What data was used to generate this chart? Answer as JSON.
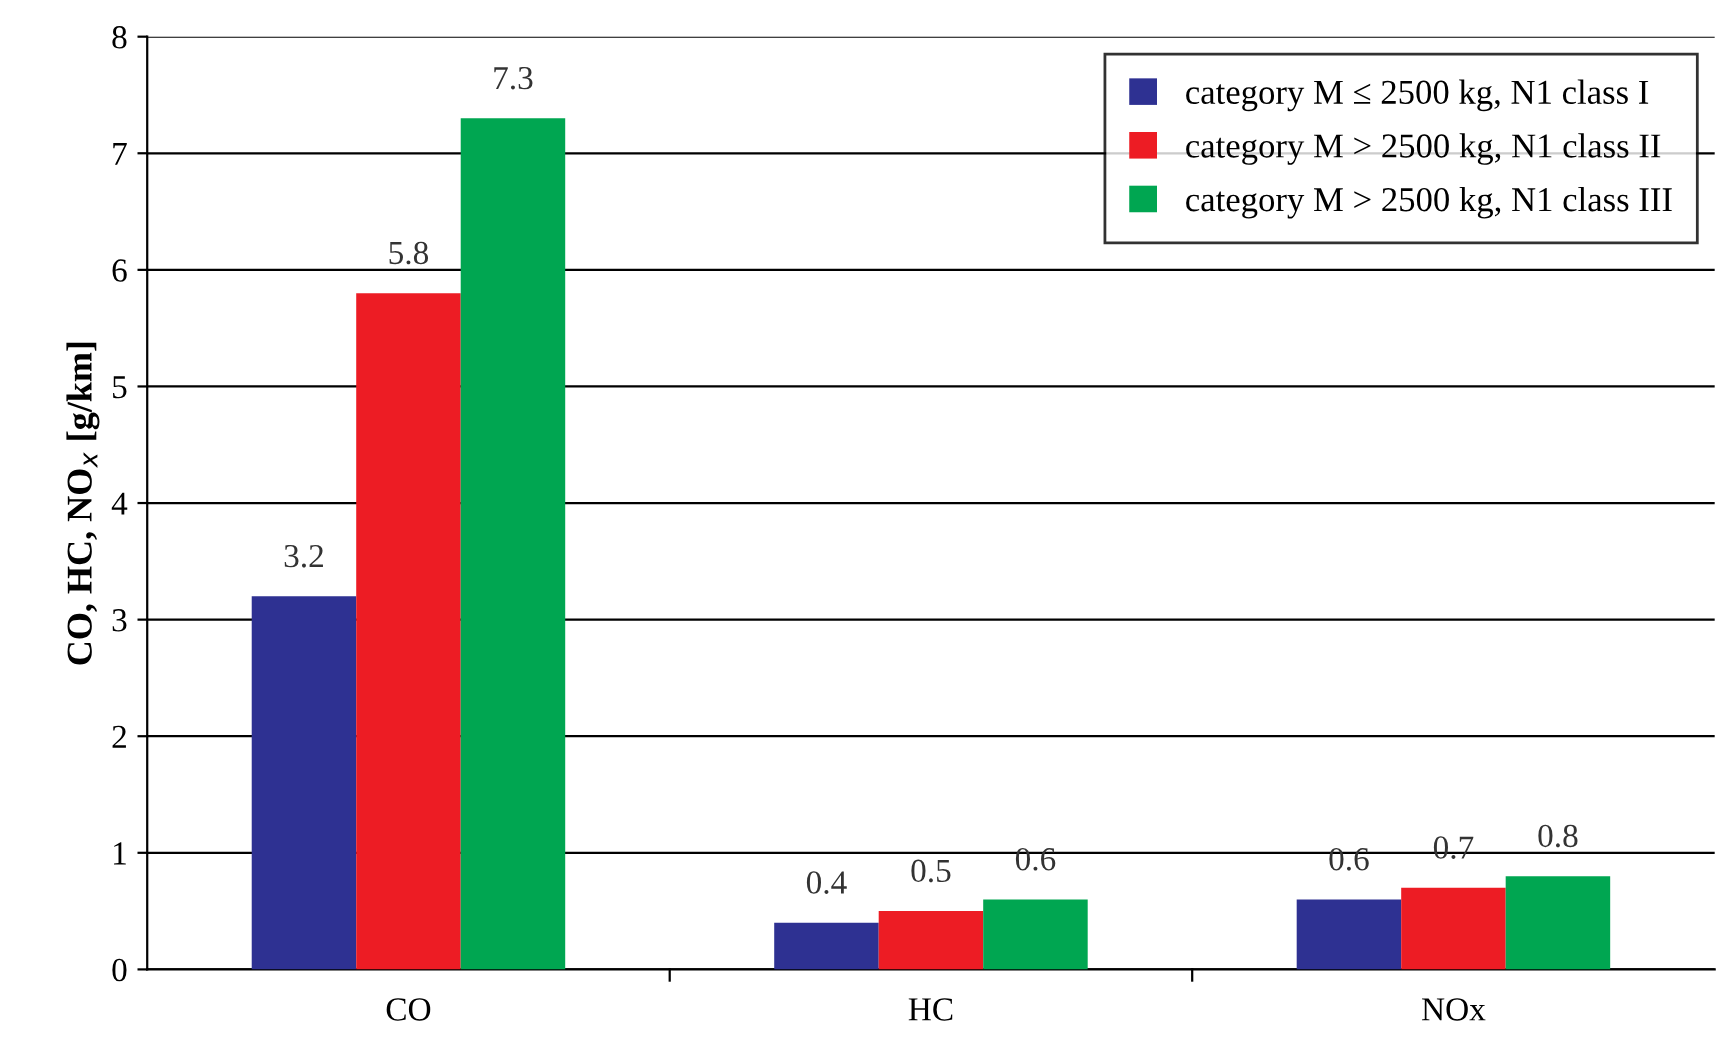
{
  "chart_data": {
    "type": "bar",
    "ylabel": "CO, HC, NO$_{x}$ [g/km]",
    "categories": [
      "CO",
      "HC",
      "NOx"
    ],
    "series": [
      {
        "name": "category M ≤ 2500 kg, N1 class I",
        "color": "#2e3192",
        "values": [
          3.2,
          0.4,
          0.6
        ]
      },
      {
        "name": "category M > 2500 kg, N1 class II",
        "color": "#ed1c24",
        "values": [
          5.8,
          0.5,
          0.7
        ]
      },
      {
        "name": "category M > 2500 kg, N1 class III",
        "color": "#00a651",
        "values": [
          7.3,
          0.6,
          0.8
        ]
      }
    ],
    "ylim": [
      0,
      8
    ],
    "yticks": [
      0,
      1,
      2,
      3,
      4,
      5,
      6,
      7,
      8
    ],
    "grid": "y",
    "legend": "top right",
    "data_labels": true
  }
}
